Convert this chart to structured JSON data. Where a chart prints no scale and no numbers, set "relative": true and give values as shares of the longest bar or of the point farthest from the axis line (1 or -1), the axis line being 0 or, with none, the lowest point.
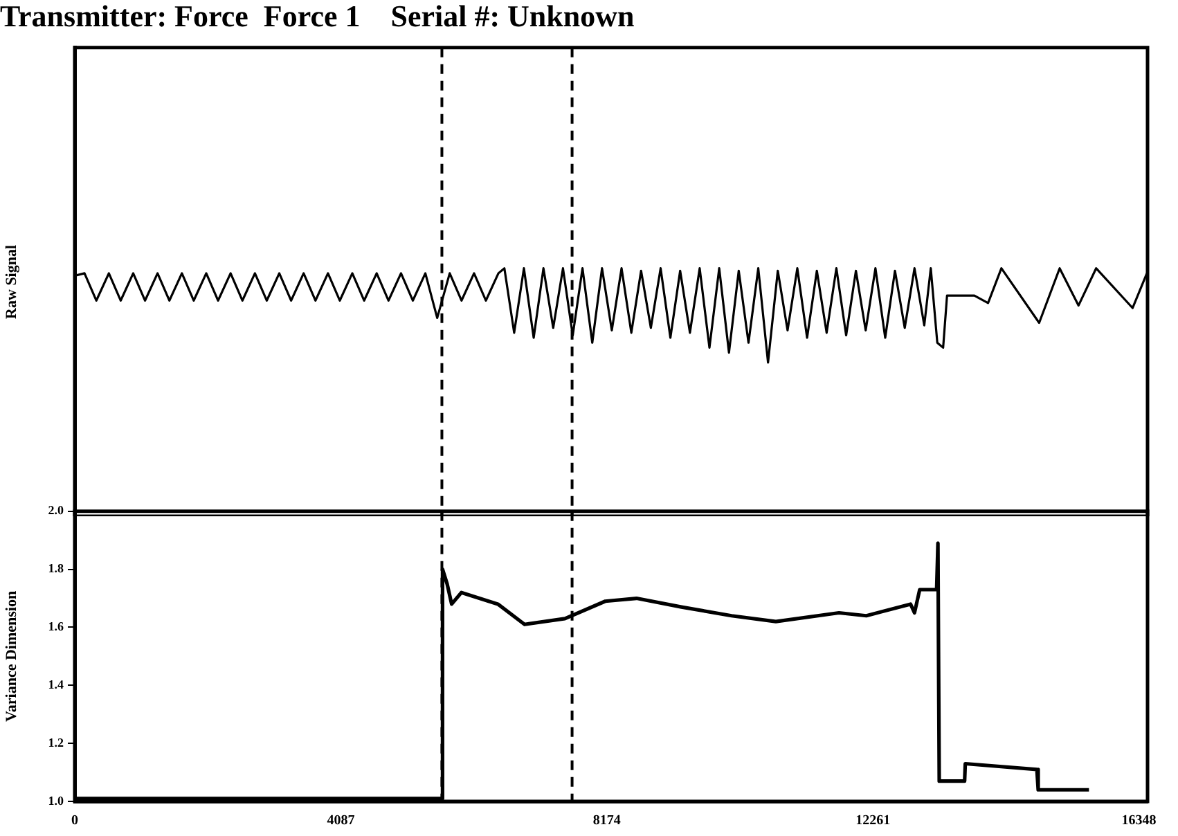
{
  "chart_data": [
    {
      "type": "line",
      "title": "Transmitter: Force  Force 1    Serial #: Unknown",
      "ylabel": "Raw Signal",
      "relative": true,
      "xlim": [
        0,
        16480
      ],
      "legend": false,
      "grid": false,
      "marker": "none",
      "line_style": "solid",
      "ref_lines": [
        {
          "axis": "x",
          "value": 5640,
          "color": "#000000",
          "line_style": "dashed"
        },
        {
          "axis": "x",
          "value": 7640,
          "color": "#000000",
          "line_style": "dashed"
        }
      ],
      "x": [
        0,
        150,
        332,
        524,
        706,
        898,
        1080,
        1272,
        1454,
        1646,
        1828,
        2020,
        2202,
        2394,
        2576,
        2768,
        2950,
        3142,
        3324,
        3516,
        3698,
        3890,
        4072,
        4264,
        4446,
        4638,
        4820,
        5012,
        5194,
        5386,
        5568,
        5760,
        5942,
        6134,
        6316,
        6508,
        6600,
        6750,
        6900,
        7050,
        7200,
        7350,
        7500,
        7650,
        7800,
        7950,
        8100,
        8250,
        8400,
        8550,
        8700,
        8850,
        9000,
        9150,
        9300,
        9450,
        9600,
        9750,
        9900,
        10050,
        10200,
        10350,
        10500,
        10650,
        10800,
        10950,
        11100,
        11250,
        11400,
        11550,
        11700,
        11850,
        12000,
        12150,
        12300,
        12450,
        12600,
        12750,
        12900,
        13050,
        13150,
        13250,
        13340,
        13400,
        13820,
        14030,
        14235,
        14815,
        15130,
        15420,
        15690,
        16250,
        16470
      ],
      "series": [
        {
          "color": "#000000",
          "values": [
            0.97,
            0.98,
            0.87,
            0.98,
            0.87,
            0.98,
            0.87,
            0.98,
            0.87,
            0.98,
            0.87,
            0.98,
            0.87,
            0.98,
            0.87,
            0.98,
            0.87,
            0.98,
            0.87,
            0.98,
            0.87,
            0.98,
            0.87,
            0.98,
            0.87,
            0.98,
            0.87,
            0.98,
            0.87,
            0.98,
            0.8,
            0.98,
            0.87,
            0.98,
            0.87,
            0.98,
            1.0,
            0.74,
            1.0,
            0.72,
            1.0,
            0.76,
            1.0,
            0.73,
            1.0,
            0.7,
            1.0,
            0.75,
            1.0,
            0.74,
            0.99,
            0.76,
            1.0,
            0.72,
            0.99,
            0.74,
            1.0,
            0.68,
            1.0,
            0.66,
            0.99,
            0.7,
            1.0,
            0.62,
            0.99,
            0.75,
            1.0,
            0.72,
            0.99,
            0.74,
            1.0,
            0.73,
            0.99,
            0.75,
            1.0,
            0.72,
            0.99,
            0.76,
            1.0,
            0.77,
            1.0,
            0.7,
            0.68,
            0.89,
            0.89,
            0.86,
            1.0,
            0.78,
            1.0,
            0.85,
            1.0,
            0.84,
            0.98
          ]
        }
      ]
    },
    {
      "type": "line",
      "ylabel": "Variance Dimension",
      "xlim": [
        0,
        16480
      ],
      "xticks": [
        0,
        4087,
        8174,
        12261,
        16348
      ],
      "ylim": [
        1,
        2
      ],
      "yticks": [
        {
          "value": 1,
          "label": "1.0"
        },
        1.2,
        1.4,
        1.6,
        1.8,
        {
          "value": 2,
          "label": "2.0"
        }
      ],
      "legend": false,
      "grid": false,
      "marker": "none",
      "line_style": "solid",
      "ref_lines": [
        {
          "axis": "x",
          "value": 5640,
          "color": "#000000",
          "line_style": "dashed"
        },
        {
          "axis": "x",
          "value": 7640,
          "color": "#000000",
          "line_style": "dashed"
        }
      ],
      "x": [
        0,
        5600,
        5640,
        5650,
        5720,
        5790,
        5940,
        6500,
        6910,
        7530,
        8150,
        8630,
        9320,
        10090,
        10770,
        11740,
        12160,
        12840,
        12900,
        12980,
        13240,
        13260,
        13280,
        13670,
        13680,
        14780,
        14800,
        15580
      ],
      "series": [
        {
          "color": "#000000",
          "values": [
            1.01,
            1.01,
            1.01,
            1.8,
            1.75,
            1.68,
            1.72,
            1.68,
            1.61,
            1.63,
            1.69,
            1.7,
            1.67,
            1.64,
            1.62,
            1.65,
            1.64,
            1.68,
            1.65,
            1.73,
            1.73,
            1.89,
            1.07,
            1.07,
            1.13,
            1.11,
            1.04,
            1.04
          ]
        }
      ]
    }
  ]
}
